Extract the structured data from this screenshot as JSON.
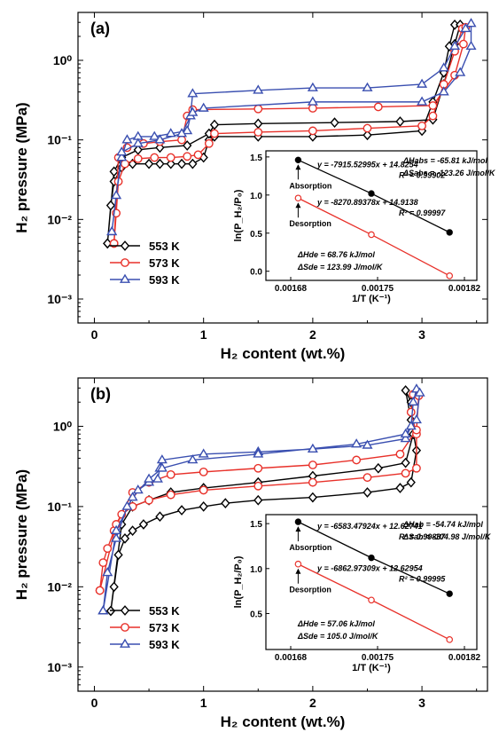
{
  "chart_data": [
    {
      "panel_label": "(a)",
      "type": "line",
      "xlabel": "H₂ content (wt.%)",
      "ylabel": "H₂ pressure (MPa)",
      "xlim": [
        -0.15,
        3.6
      ],
      "ylim": [
        0.0005,
        4
      ],
      "yscale": "log",
      "x_ticks": [
        "0",
        "1",
        "2",
        "3"
      ],
      "y_ticks": [
        "10⁻³",
        "10⁻²",
        "10⁻¹",
        "10⁰"
      ],
      "legend": [
        "553 K",
        "573 K",
        "593 K"
      ],
      "legend_position": "lower-left",
      "series": [
        {
          "name": "553 K",
          "color": "#000000",
          "marker": "diamond",
          "points": [
            [
              0.12,
              0.005
            ],
            [
              0.15,
              0.015
            ],
            [
              0.18,
              0.03
            ],
            [
              0.25,
              0.045
            ],
            [
              0.35,
              0.05
            ],
            [
              0.5,
              0.05
            ],
            [
              0.6,
              0.05
            ],
            [
              0.7,
              0.05
            ],
            [
              0.8,
              0.05
            ],
            [
              0.9,
              0.05
            ],
            [
              1.0,
              0.06
            ],
            [
              1.05,
              0.1
            ],
            [
              1.1,
              0.11
            ],
            [
              1.5,
              0.11
            ],
            [
              2.0,
              0.11
            ],
            [
              2.5,
              0.115
            ],
            [
              3.0,
              0.13
            ],
            [
              3.1,
              0.3
            ],
            [
              3.2,
              0.7
            ],
            [
              3.25,
              1.5
            ],
            [
              3.3,
              2.8
            ],
            [
              3.35,
              2.8
            ],
            [
              3.3,
              1.6
            ],
            [
              3.2,
              0.5
            ],
            [
              3.1,
              0.18
            ],
            [
              2.8,
              0.17
            ],
            [
              2.2,
              0.165
            ],
            [
              1.5,
              0.16
            ],
            [
              1.1,
              0.155
            ],
            [
              1.05,
              0.12
            ],
            [
              0.85,
              0.085
            ],
            [
              0.6,
              0.08
            ],
            [
              0.4,
              0.075
            ],
            [
              0.25,
              0.06
            ],
            [
              0.18,
              0.04
            ],
            [
              0.12,
              0.005
            ]
          ]
        },
        {
          "name": "573 K",
          "color": "#e8312a",
          "marker": "circle",
          "points": [
            [
              0.18,
              0.005
            ],
            [
              0.2,
              0.012
            ],
            [
              0.22,
              0.03
            ],
            [
              0.28,
              0.05
            ],
            [
              0.4,
              0.058
            ],
            [
              0.55,
              0.06
            ],
            [
              0.7,
              0.06
            ],
            [
              0.85,
              0.062
            ],
            [
              0.95,
              0.065
            ],
            [
              1.05,
              0.09
            ],
            [
              1.1,
              0.12
            ],
            [
              1.5,
              0.125
            ],
            [
              2.0,
              0.13
            ],
            [
              2.5,
              0.14
            ],
            [
              3.0,
              0.15
            ],
            [
              3.1,
              0.2
            ],
            [
              3.2,
              0.5
            ],
            [
              3.3,
              1.3
            ],
            [
              3.37,
              2.5
            ],
            [
              3.4,
              2.6
            ],
            [
              3.38,
              1.6
            ],
            [
              3.3,
              0.65
            ],
            [
              3.1,
              0.27
            ],
            [
              2.6,
              0.26
            ],
            [
              2.0,
              0.25
            ],
            [
              1.5,
              0.245
            ],
            [
              0.9,
              0.24
            ],
            [
              0.85,
              0.2
            ],
            [
              0.8,
              0.1
            ],
            [
              0.6,
              0.095
            ],
            [
              0.45,
              0.09
            ],
            [
              0.3,
              0.08
            ],
            [
              0.22,
              0.06
            ],
            [
              0.18,
              0.005
            ]
          ]
        },
        {
          "name": "593 K",
          "color": "#3a4fb0",
          "marker": "triangle",
          "points": [
            [
              0.16,
              0.007
            ],
            [
              0.2,
              0.02
            ],
            [
              0.25,
              0.06
            ],
            [
              0.3,
              0.1
            ],
            [
              0.4,
              0.11
            ],
            [
              0.55,
              0.11
            ],
            [
              0.7,
              0.12
            ],
            [
              0.85,
              0.13
            ],
            [
              0.88,
              0.2
            ],
            [
              0.9,
              0.38
            ],
            [
              1.5,
              0.42
            ],
            [
              2.0,
              0.45
            ],
            [
              2.5,
              0.45
            ],
            [
              3.0,
              0.5
            ],
            [
              3.2,
              0.8
            ],
            [
              3.3,
              1.5
            ],
            [
              3.4,
              2.5
            ],
            [
              3.45,
              2.9
            ],
            [
              3.45,
              1.5
            ],
            [
              3.35,
              0.7
            ],
            [
              3.2,
              0.4
            ],
            [
              3.0,
              0.3
            ],
            [
              2.0,
              0.3
            ],
            [
              1.0,
              0.25
            ],
            [
              0.9,
              0.22
            ],
            [
              0.8,
              0.12
            ],
            [
              0.6,
              0.1
            ],
            [
              0.4,
              0.09
            ],
            [
              0.25,
              0.07
            ],
            [
              0.16,
              0.007
            ]
          ]
        }
      ],
      "inset": {
        "type": "scatter",
        "xlabel": "1/T (K⁻¹)",
        "ylabel": "ln(P_H₂/P₀)",
        "xlim": [
          0.00166,
          0.00183
        ],
        "ylim": [
          -0.12,
          1.58
        ],
        "x_ticks": [
          "0.00168",
          "0.00175",
          "0.00182"
        ],
        "y_ticks": [
          "0.0",
          "0.5",
          "1.0",
          "1.5"
        ],
        "series": [
          {
            "name": "Absorption",
            "color": "#000000",
            "x": [
              0.001686,
              0.001745,
              0.001808
            ],
            "y": [
              1.46,
              1.02,
              0.51
            ]
          },
          {
            "name": "Desorption",
            "color": "#e8312a",
            "x": [
              0.001686,
              0.001745,
              0.001808
            ],
            "y": [
              0.96,
              0.48,
              -0.06
            ]
          }
        ],
        "annotations": {
          "abs_fit": "y = -7915.52995x + 14.8254",
          "abs_r2": "R² = 0.99902",
          "des_fit": "y = -8270.89378x + 14.9138",
          "des_r2": "R² = 0.99997",
          "dh_abs": "ΔHabs = -65.81 kJ/mol",
          "ds_abs": "ΔSabs = -123.26 J/mol/K",
          "dh_des": "ΔHde = 68.76 kJ/mol",
          "ds_des": "ΔSde = 123.99 J/mol/K",
          "absorption_label": "Absorption",
          "desorption_label": "Desorption"
        }
      }
    },
    {
      "panel_label": "(b)",
      "type": "line",
      "xlabel": "H₂ content (wt.%)",
      "ylabel": "H₂ pressure (MPa)",
      "xlim": [
        -0.15,
        3.6
      ],
      "ylim": [
        0.0005,
        4
      ],
      "yscale": "log",
      "x_ticks": [
        "0",
        "1",
        "2",
        "3"
      ],
      "y_ticks": [
        "10⁻³",
        "10⁻²",
        "10⁻¹",
        "10⁰"
      ],
      "legend": [
        "553 K",
        "573 K",
        "593 K"
      ],
      "legend_position": "lower-left",
      "series": [
        {
          "name": "553 K",
          "color": "#000000",
          "marker": "diamond",
          "points": [
            [
              0.15,
              0.005
            ],
            [
              0.18,
              0.01
            ],
            [
              0.22,
              0.025
            ],
            [
              0.28,
              0.04
            ],
            [
              0.35,
              0.05
            ],
            [
              0.45,
              0.06
            ],
            [
              0.6,
              0.075
            ],
            [
              0.8,
              0.09
            ],
            [
              1.0,
              0.1
            ],
            [
              1.2,
              0.11
            ],
            [
              1.5,
              0.12
            ],
            [
              2.0,
              0.13
            ],
            [
              2.5,
              0.15
            ],
            [
              2.8,
              0.17
            ],
            [
              2.9,
              0.2
            ],
            [
              2.95,
              0.5
            ],
            [
              2.9,
              1.2
            ],
            [
              2.85,
              2.8
            ],
            [
              2.9,
              2.0
            ],
            [
              2.92,
              0.8
            ],
            [
              2.85,
              0.35
            ],
            [
              2.6,
              0.3
            ],
            [
              2.0,
              0.24
            ],
            [
              1.5,
              0.2
            ],
            [
              1.0,
              0.17
            ],
            [
              0.7,
              0.15
            ],
            [
              0.5,
              0.12
            ],
            [
              0.35,
              0.1
            ],
            [
              0.25,
              0.06
            ],
            [
              0.15,
              0.005
            ]
          ]
        },
        {
          "name": "573 K",
          "color": "#e8312a",
          "marker": "circle",
          "points": [
            [
              0.05,
              0.009
            ],
            [
              0.08,
              0.02
            ],
            [
              0.12,
              0.03
            ],
            [
              0.18,
              0.05
            ],
            [
              0.25,
              0.08
            ],
            [
              0.35,
              0.1
            ],
            [
              0.5,
              0.12
            ],
            [
              0.7,
              0.14
            ],
            [
              1.0,
              0.16
            ],
            [
              1.5,
              0.18
            ],
            [
              2.0,
              0.2
            ],
            [
              2.5,
              0.23
            ],
            [
              2.85,
              0.26
            ],
            [
              2.95,
              0.3
            ],
            [
              2.95,
              0.8
            ],
            [
              2.9,
              1.5
            ],
            [
              2.92,
              2.5
            ],
            [
              2.97,
              2.4
            ],
            [
              2.95,
              0.9
            ],
            [
              2.8,
              0.45
            ],
            [
              2.4,
              0.38
            ],
            [
              2.0,
              0.33
            ],
            [
              1.5,
              0.3
            ],
            [
              1.0,
              0.27
            ],
            [
              0.7,
              0.25
            ],
            [
              0.5,
              0.2
            ],
            [
              0.35,
              0.15
            ],
            [
              0.2,
              0.06
            ],
            [
              0.05,
              0.009
            ]
          ]
        },
        {
          "name": "593 K",
          "color": "#3a4fb0",
          "marker": "triangle",
          "points": [
            [
              0.08,
              0.005
            ],
            [
              0.12,
              0.015
            ],
            [
              0.2,
              0.04
            ],
            [
              0.3,
              0.1
            ],
            [
              0.4,
              0.16
            ],
            [
              0.5,
              0.2
            ],
            [
              0.58,
              0.22
            ],
            [
              0.6,
              0.3
            ],
            [
              0.62,
              0.38
            ],
            [
              1.0,
              0.45
            ],
            [
              1.5,
              0.48
            ],
            [
              2.0,
              0.52
            ],
            [
              2.5,
              0.58
            ],
            [
              2.85,
              0.7
            ],
            [
              2.9,
              1.0
            ],
            [
              2.92,
              2.0
            ],
            [
              2.95,
              2.9
            ],
            [
              2.98,
              2.6
            ],
            [
              2.95,
              1.2
            ],
            [
              2.85,
              0.8
            ],
            [
              2.4,
              0.6
            ],
            [
              1.5,
              0.45
            ],
            [
              0.9,
              0.38
            ],
            [
              0.62,
              0.3
            ],
            [
              0.5,
              0.22
            ],
            [
              0.35,
              0.13
            ],
            [
              0.2,
              0.05
            ],
            [
              0.08,
              0.005
            ]
          ]
        }
      ],
      "inset": {
        "type": "scatter",
        "xlabel": "1/T (K⁻¹)",
        "ylabel": "ln(P_H₂/P₀)",
        "xlim": [
          0.00166,
          0.00183
        ],
        "ylim": [
          0.1,
          1.6
        ],
        "x_ticks": [
          "0.00168",
          "0.00175",
          "0.00182"
        ],
        "y_ticks": [
          "0.5",
          "1.0",
          "1.5"
        ],
        "series": [
          {
            "name": "Absorption",
            "color": "#000000",
            "x": [
              0.001686,
              0.001745,
              0.001808
            ],
            "y": [
              1.52,
              1.12,
              0.72
            ]
          },
          {
            "name": "Desorption",
            "color": "#e8312a",
            "x": [
              0.001686,
              0.001745,
              0.001808
            ],
            "y": [
              1.05,
              0.65,
              0.21
            ]
          }
        ],
        "annotations": {
          "abs_fit": "y = -6583.47924x + 12.62741",
          "abs_r2": "R² = 0.99837",
          "des_fit": "y = -6862.97309x + 12.62954",
          "des_r2": "R² = 0.99995",
          "dh_abs": "ΔHab = -54.74 kJ/mol",
          "ds_abs": "ΔSab = -104.98 J/mol/K",
          "dh_des": "ΔHde = 57.06 kJ/mol",
          "ds_des": "ΔSde = 105.0 J/mol/K",
          "absorption_label": "Absorption",
          "desorption_label": "Desorption"
        }
      }
    }
  ]
}
